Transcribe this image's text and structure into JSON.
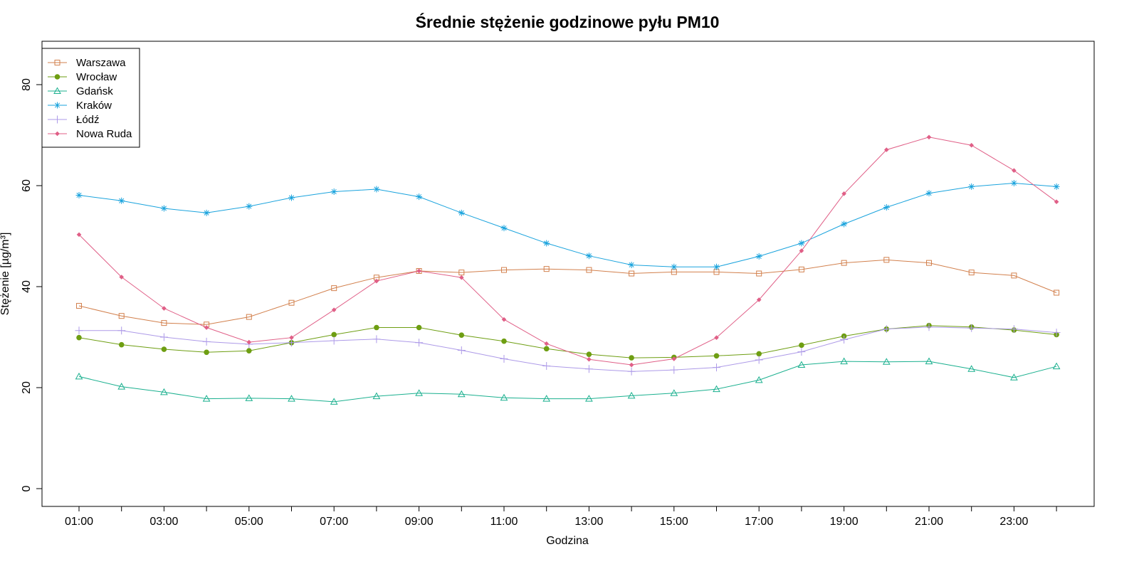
{
  "chart_data": {
    "type": "line",
    "title": "Średnie stężenie godzinowe pyłu PM10",
    "xlabel": "Godzina",
    "ylabel": "Stężenie [µg/m³]",
    "ylim": [
      -3,
      88
    ],
    "yticks": [
      0,
      20,
      40,
      60,
      80
    ],
    "x": [
      "01:00",
      "02:00",
      "03:00",
      "04:00",
      "05:00",
      "06:00",
      "07:00",
      "08:00",
      "09:00",
      "10:00",
      "11:00",
      "12:00",
      "13:00",
      "14:00",
      "15:00",
      "16:00",
      "17:00",
      "18:00",
      "19:00",
      "20:00",
      "21:00",
      "22:00",
      "23:00",
      "24:00"
    ],
    "xtick_labels": [
      "01:00",
      "03:00",
      "05:00",
      "07:00",
      "09:00",
      "11:00",
      "13:00",
      "15:00",
      "17:00",
      "19:00",
      "21:00",
      "23:00"
    ],
    "legend_position": "top-left",
    "grid": false,
    "series": [
      {
        "name": "Warszawa",
        "color": "#D2804D",
        "marker": "square",
        "values": [
          36.2,
          34.2,
          32.8,
          32.5,
          34.0,
          36.8,
          39.7,
          41.8,
          43.1,
          42.8,
          43.3,
          43.5,
          43.3,
          42.6,
          42.9,
          42.9,
          42.6,
          43.4,
          44.7,
          45.3,
          44.7,
          42.8,
          42.2,
          38.8
        ]
      },
      {
        "name": "Wrocław",
        "color": "#6E9E12",
        "marker": "circle",
        "values": [
          29.9,
          28.5,
          27.6,
          27.0,
          27.3,
          28.9,
          30.5,
          31.9,
          31.9,
          30.4,
          29.2,
          27.7,
          26.6,
          25.9,
          26.0,
          26.3,
          26.7,
          28.4,
          30.2,
          31.6,
          32.3,
          32.0,
          31.4,
          30.5
        ]
      },
      {
        "name": "Gdańsk",
        "color": "#1BB08F",
        "marker": "triangle",
        "values": [
          22.2,
          20.2,
          19.1,
          17.8,
          17.9,
          17.8,
          17.2,
          18.3,
          18.9,
          18.7,
          18.0,
          17.8,
          17.8,
          18.4,
          18.9,
          19.7,
          21.5,
          24.5,
          25.2,
          25.1,
          25.2,
          23.7,
          22.0,
          24.2
        ]
      },
      {
        "name": "Kraków",
        "color": "#1AA3DD",
        "marker": "star",
        "values": [
          58.1,
          57.0,
          55.5,
          54.6,
          55.9,
          57.6,
          58.8,
          59.3,
          57.8,
          54.6,
          51.6,
          48.6,
          46.1,
          44.3,
          43.9,
          43.9,
          46.0,
          48.6,
          52.4,
          55.7,
          58.5,
          59.8,
          60.5,
          59.8
        ]
      },
      {
        "name": "Łódź",
        "color": "#AD9AE8",
        "marker": "plus",
        "values": [
          31.3,
          31.3,
          30.0,
          29.1,
          28.6,
          28.9,
          29.3,
          29.6,
          28.9,
          27.4,
          25.7,
          24.3,
          23.7,
          23.2,
          23.5,
          24.0,
          25.5,
          27.1,
          29.5,
          31.6,
          32.0,
          31.8,
          31.6,
          30.9
        ]
      },
      {
        "name": "Nowa Ruda",
        "color": "#E05F87",
        "marker": "diamond",
        "values": [
          50.3,
          41.9,
          35.7,
          31.9,
          29.0,
          29.9,
          35.4,
          41.1,
          43.1,
          41.8,
          33.5,
          28.7,
          25.6,
          24.5,
          25.7,
          29.9,
          37.4,
          47.1,
          58.4,
          67.1,
          69.6,
          68.0,
          63.0,
          56.8
        ]
      }
    ]
  }
}
